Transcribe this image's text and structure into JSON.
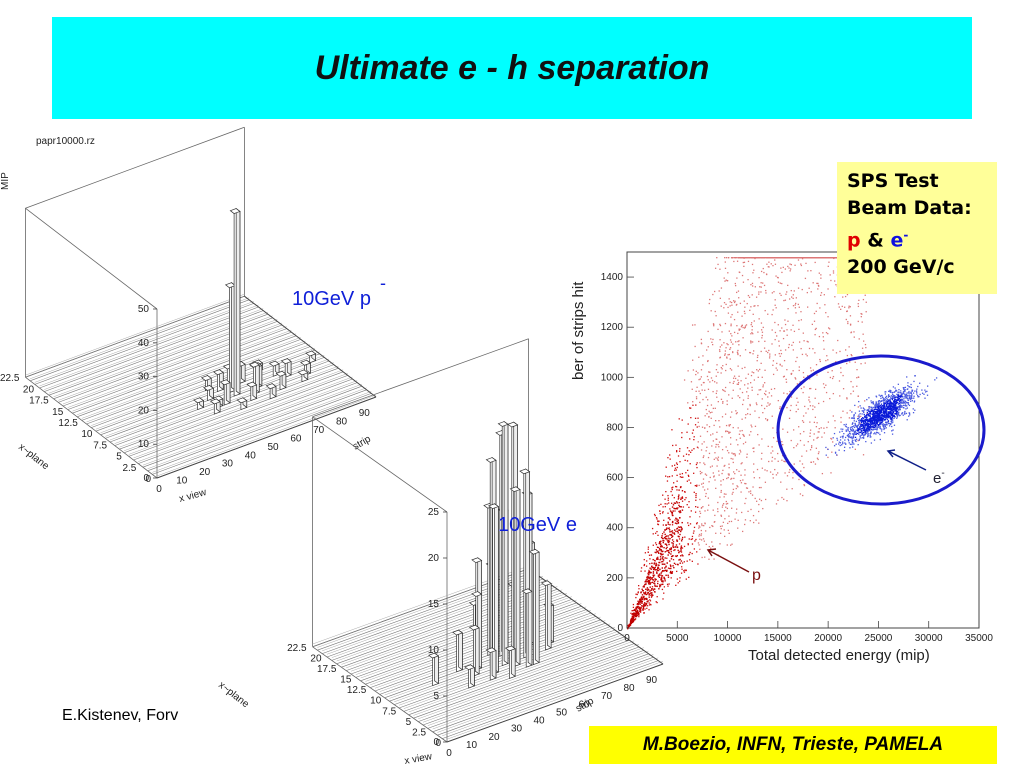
{
  "title": "Ultimate e - h separation",
  "plot1": {
    "filename": "papr10000.rz",
    "z_label": "MIP",
    "z_ticks": [
      "0",
      "10",
      "20",
      "30",
      "40",
      "50"
    ],
    "y_label": "x~plane",
    "y_ticks": [
      "22.5",
      "20",
      "17.5",
      "15",
      "12.5",
      "10",
      "7.5",
      "5",
      "2.5",
      "0"
    ],
    "x_ticks": [
      "0",
      "10",
      "20",
      "30",
      "40",
      "50",
      "60",
      "70",
      "80",
      "90"
    ],
    "x_label": "strip",
    "bottom_label": "x view",
    "particle_label": "10GeV p",
    "particle_bar": "-"
  },
  "plot2": {
    "z_ticks": [
      "0",
      "5",
      "10",
      "15",
      "20",
      "25"
    ],
    "y_label": "x~plane",
    "y_ticks": [
      "22.5",
      "20",
      "17.5",
      "15",
      "12.5",
      "10",
      "7.5",
      "5",
      "2.5",
      "0"
    ],
    "x_ticks": [
      "0",
      "10",
      "20",
      "30",
      "40",
      "50",
      "60",
      "70",
      "80",
      "90"
    ],
    "x_label": "strip",
    "bottom_label": "x view",
    "particle_label": "10GeV e"
  },
  "footer_left": "E.Kistenev, Forv",
  "chart_data": {
    "type": "scatter",
    "xlabel": "Total detected energy (mip)",
    "ylabel": "ber of strips hit",
    "xlim": [
      0,
      35000
    ],
    "ylim": [
      0,
      1500
    ],
    "x_ticks": [
      "0",
      "5000",
      "10000",
      "15000",
      "20000",
      "25000",
      "30000",
      "35000"
    ],
    "y_ticks": [
      "0",
      "200",
      "400",
      "600",
      "800",
      "1000",
      "1200",
      "1400"
    ],
    "series": [
      {
        "name": "p",
        "color": "#cc1111",
        "center_x": 12000,
        "center_y": 800
      },
      {
        "name": "e",
        "superscript": "-",
        "color": "#1111dd",
        "center_x": 25000,
        "center_y": 850
      }
    ]
  },
  "info_box": {
    "line1": "SPS Test",
    "line2": "Beam Data:",
    "p": "p",
    "amp": "&",
    "e": "e",
    "e_sup": "-",
    "line4": "200 GeV/c"
  },
  "credit": "M.Boezio, INFN, Trieste, PAMELA"
}
